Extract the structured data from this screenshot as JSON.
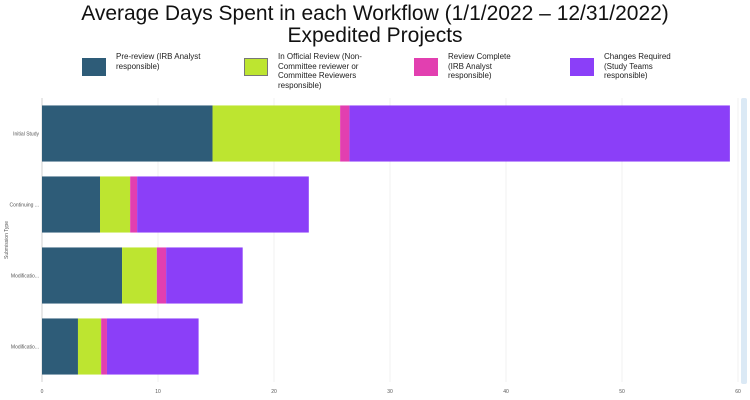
{
  "header": {
    "title_line1": "Average Days Spent in each Workflow (1/1/2022 – 12/31/2022)",
    "title_line2": "Expedited Projects"
  },
  "legend": [
    {
      "label": "Pre-review (IRB Analyst responsible)",
      "color": "#2e5c78"
    },
    {
      "label": "In Official Review (Non-Committee reviewer or Committee Reviewers responsible)",
      "color": "#bde530"
    },
    {
      "label": "Review Complete (IRB Analyst responsible)",
      "color": "#e23fb0"
    },
    {
      "label": "Changes Required (Study Teams responsible)",
      "color": "#8b3ff8"
    }
  ],
  "chart_data": {
    "type": "bar",
    "orientation": "horizontal",
    "stacked": true,
    "title": "Average Days Spent in each Workflow (1/1/2022 – 12/31/2022) Expedited Projects",
    "ylabel": "Submission Type",
    "xlabel": "",
    "categories": [
      "Initial Study",
      "Continuing ...",
      "Modificatio...",
      "Modificatio..."
    ],
    "series": [
      {
        "name": "Pre-review (IRB Analyst responsible)",
        "color": "#2e5c78",
        "values": [
          14.7,
          5.0,
          6.9,
          3.1
        ]
      },
      {
        "name": "In Official Review (Non-Committee reviewer or Committee Reviewers responsible)",
        "color": "#bde530",
        "values": [
          11.0,
          2.6,
          3.0,
          2.0
        ]
      },
      {
        "name": "Review Complete (IRB Analyst responsible)",
        "color": "#e23fb0",
        "values": [
          0.8,
          0.6,
          0.8,
          0.5
        ]
      },
      {
        "name": "Changes Required (Study Teams responsible)",
        "color": "#8b3ff8",
        "values": [
          32.8,
          14.8,
          6.6,
          7.9
        ]
      }
    ],
    "xlim": [
      0,
      60
    ],
    "xticks": [
      0,
      10,
      20,
      30,
      40,
      50,
      60
    ],
    "grid": "vertical",
    "legend_position": "top"
  }
}
